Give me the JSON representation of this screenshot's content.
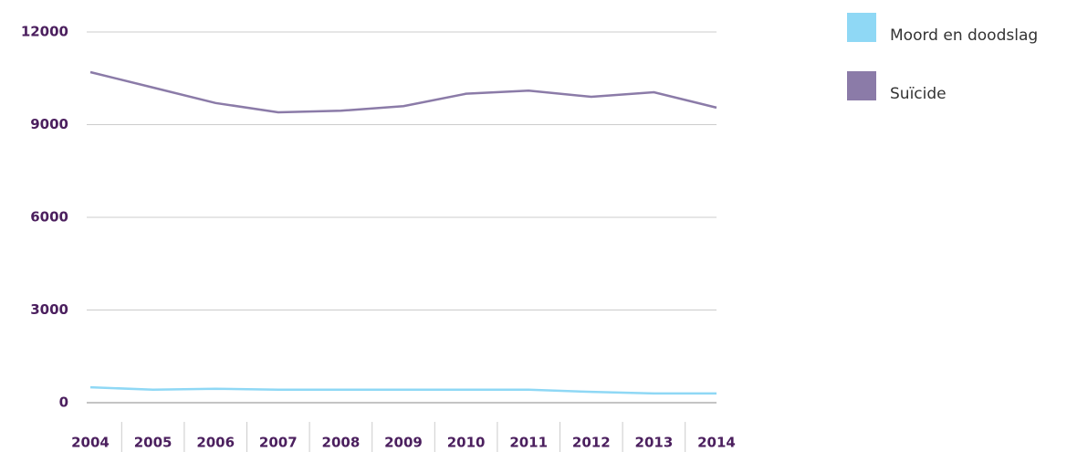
{
  "chart_data": {
    "type": "line",
    "categories": [
      "2004",
      "2005",
      "2006",
      "2007",
      "2008",
      "2009",
      "2010",
      "2011",
      "2012",
      "2013",
      "2014"
    ],
    "series": [
      {
        "name": "Moord en doodslag",
        "color": "#8fd8f5",
        "values": [
          500,
          420,
          450,
          420,
          420,
          420,
          420,
          420,
          350,
          300,
          300
        ]
      },
      {
        "name": "Suïcide",
        "color": "#8b7ba8",
        "values": [
          10700,
          10200,
          9700,
          9400,
          9450,
          9600,
          10000,
          10100,
          9900,
          10050,
          9550
        ]
      }
    ],
    "ylim": [
      0,
      12000
    ],
    "yticks": [
      0,
      3000,
      6000,
      9000,
      12000
    ],
    "grid": true,
    "legend": "right"
  }
}
